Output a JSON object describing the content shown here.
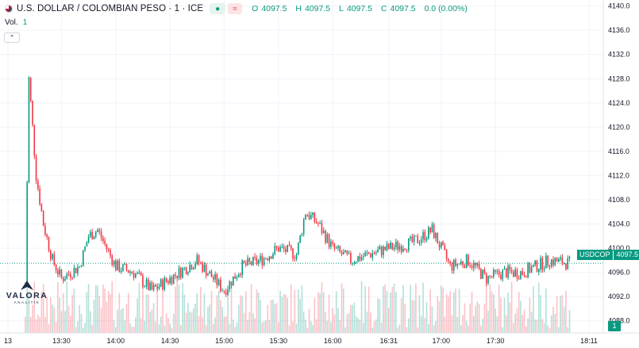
{
  "header": {
    "symbol": "U.S. DOLLAR / COLOMBIAN PESO · 1 · ICE",
    "open_label": "O",
    "open": "4097.5",
    "high_label": "H",
    "high": "4097.5",
    "low_label": "L",
    "low": "4097.5",
    "close_label": "C",
    "close": "4097.5",
    "change": "0.0 (0.00%)",
    "indicator_dot": "●",
    "indicator_eq": "≈",
    "volume_label": "Vol.",
    "volume_value": "1",
    "collapse_glyph": "⌃"
  },
  "watermark": {
    "name": "VALORA",
    "sub": "ANALITIK"
  },
  "price_tag": {
    "symbol": "USDCOP",
    "value": "4097.5"
  },
  "volume_tag": "1",
  "colors": {
    "up": "#089981",
    "down": "#f23645",
    "grid": "#f0f3fa",
    "text": "#131722"
  },
  "chart_data": {
    "type": "candlestick",
    "title": "U.S. DOLLAR / COLOMBIAN PESO · 1 · ICE",
    "interval_minutes": 1,
    "ylim": [
      4086,
      4141
    ],
    "y_ticks": [
      "4140.0",
      "4136.0",
      "4132.0",
      "4128.0",
      "4124.0",
      "4120.0",
      "4116.0",
      "4112.0",
      "4108.0",
      "4104.0",
      "4100.0",
      "4096.0",
      "4092.0",
      "4088.0"
    ],
    "x_ticks": [
      "13",
      "13:30",
      "14:00",
      "14:30",
      "15:00",
      "15:30",
      "16:00",
      "16:31",
      "17:00",
      "17:30",
      "18:11"
    ],
    "last_price": 4097.5,
    "anchor_points": [
      {
        "time": "13:10",
        "price": 4094
      },
      {
        "time": "13:12",
        "price": 4128
      },
      {
        "time": "13:16",
        "price": 4112
      },
      {
        "time": "13:20",
        "price": 4104
      },
      {
        "time": "13:25",
        "price": 4098
      },
      {
        "time": "13:30",
        "price": 4095
      },
      {
        "time": "13:40",
        "price": 4097
      },
      {
        "time": "13:45",
        "price": 4102
      },
      {
        "time": "13:50",
        "price": 4103
      },
      {
        "time": "14:00",
        "price": 4097
      },
      {
        "time": "14:10",
        "price": 4096
      },
      {
        "time": "14:20",
        "price": 4093
      },
      {
        "time": "14:30",
        "price": 4095
      },
      {
        "time": "14:40",
        "price": 4097
      },
      {
        "time": "14:45",
        "price": 4098
      },
      {
        "time": "15:00",
        "price": 4093
      },
      {
        "time": "15:10",
        "price": 4097
      },
      {
        "time": "15:20",
        "price": 4098
      },
      {
        "time": "15:30",
        "price": 4100
      },
      {
        "time": "15:40",
        "price": 4099
      },
      {
        "time": "15:45",
        "price": 4106
      },
      {
        "time": "15:52",
        "price": 4104
      },
      {
        "time": "16:00",
        "price": 4100
      },
      {
        "time": "16:10",
        "price": 4098
      },
      {
        "time": "16:20",
        "price": 4099
      },
      {
        "time": "16:31",
        "price": 4100
      },
      {
        "time": "16:45",
        "price": 4101
      },
      {
        "time": "16:55",
        "price": 4103
      },
      {
        "time": "17:00",
        "price": 4100
      },
      {
        "time": "17:05",
        "price": 4097
      },
      {
        "time": "17:15",
        "price": 4098
      },
      {
        "time": "17:25",
        "price": 4095
      },
      {
        "time": "17:35",
        "price": 4096
      },
      {
        "time": "17:45",
        "price": 4096
      },
      {
        "time": "18:00",
        "price": 4098
      },
      {
        "time": "18:11",
        "price": 4097.5
      }
    ]
  }
}
